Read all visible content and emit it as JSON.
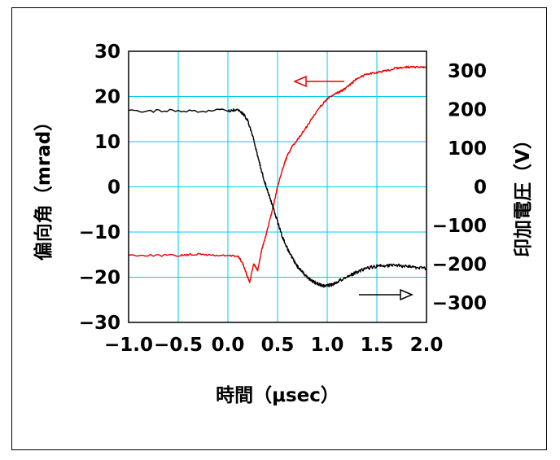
{
  "chart_data": {
    "type": "line",
    "xlabel": "時間（μsec）",
    "ylabel_left": "偏向角（mrad）",
    "ylabel_right": "印加電圧（V）",
    "xlim": [
      -1.0,
      2.0
    ],
    "ylim_left": [
      -30,
      30
    ],
    "ylim_right": [
      -350,
      350
    ],
    "x_ticks": [
      -1.0,
      -0.5,
      0.0,
      0.5,
      1.0,
      1.5,
      2.0
    ],
    "x_tick_labels": [
      "−1.0",
      "−0.5",
      "0.0",
      "0.5",
      "1.0",
      "1.5",
      "2.0"
    ],
    "y_left_ticks": [
      -30,
      -20,
      -10,
      0,
      10,
      20,
      30
    ],
    "y_left_tick_labels": [
      "−30",
      "−20",
      "−10",
      "0",
      "10",
      "20",
      "30"
    ],
    "y_right_ticks": [
      -300,
      -200,
      -100,
      0,
      100,
      200,
      300
    ],
    "y_right_tick_labels": [
      "−300",
      "−200",
      "−100",
      "0",
      "100",
      "200",
      "300"
    ],
    "grid": true,
    "colors": {
      "deflection": "#ee0000",
      "voltage": "#000000",
      "grid": "#00ccee"
    },
    "series": [
      {
        "axis": "left",
        "color": "#ee0000",
        "arrow": "left",
        "points": [
          [
            -1.0,
            -15.1
          ],
          [
            -0.5,
            -15.2
          ],
          [
            -0.3,
            -14.9
          ],
          [
            -0.1,
            -15.2
          ],
          [
            0.1,
            -15.3
          ],
          [
            0.15,
            -17
          ],
          [
            0.19,
            -19.5
          ],
          [
            0.22,
            -21
          ],
          [
            0.26,
            -17
          ],
          [
            0.3,
            -18.5
          ],
          [
            0.34,
            -14
          ],
          [
            0.38,
            -11
          ],
          [
            0.45,
            -5
          ],
          [
            0.5,
            0
          ],
          [
            0.55,
            4
          ],
          [
            0.6,
            7
          ],
          [
            0.65,
            9
          ],
          [
            0.72,
            11
          ],
          [
            0.8,
            13.5
          ],
          [
            0.9,
            17
          ],
          [
            1.0,
            19.5
          ],
          [
            1.1,
            20.8
          ],
          [
            1.15,
            21.3
          ],
          [
            1.2,
            22
          ],
          [
            1.3,
            24
          ],
          [
            1.4,
            25
          ],
          [
            1.5,
            25.3
          ],
          [
            1.6,
            25.7
          ],
          [
            1.7,
            26.3
          ],
          [
            1.8,
            26.5
          ],
          [
            1.9,
            26.5
          ],
          [
            2.0,
            26.4
          ]
        ]
      },
      {
        "axis": "right",
        "color": "#000000",
        "arrow": "right",
        "points": [
          [
            -1.0,
            196
          ],
          [
            -0.5,
            196
          ],
          [
            0.0,
            197
          ],
          [
            0.1,
            197
          ],
          [
            0.15,
            190
          ],
          [
            0.2,
            170
          ],
          [
            0.25,
            130
          ],
          [
            0.3,
            80
          ],
          [
            0.35,
            30
          ],
          [
            0.4,
            -10
          ],
          [
            0.45,
            -50
          ],
          [
            0.5,
            -90
          ],
          [
            0.55,
            -130
          ],
          [
            0.6,
            -160
          ],
          [
            0.65,
            -185
          ],
          [
            0.7,
            -205
          ],
          [
            0.75,
            -220
          ],
          [
            0.8,
            -233
          ],
          [
            0.85,
            -243
          ],
          [
            0.9,
            -250
          ],
          [
            0.95,
            -255
          ],
          [
            1.0,
            -256
          ],
          [
            1.05,
            -252
          ],
          [
            1.1,
            -245
          ],
          [
            1.2,
            -232
          ],
          [
            1.3,
            -220
          ],
          [
            1.4,
            -210
          ],
          [
            1.5,
            -205
          ],
          [
            1.6,
            -203
          ],
          [
            1.7,
            -203
          ],
          [
            1.8,
            -205
          ],
          [
            1.9,
            -208
          ],
          [
            2.0,
            -212
          ]
        ]
      }
    ]
  }
}
